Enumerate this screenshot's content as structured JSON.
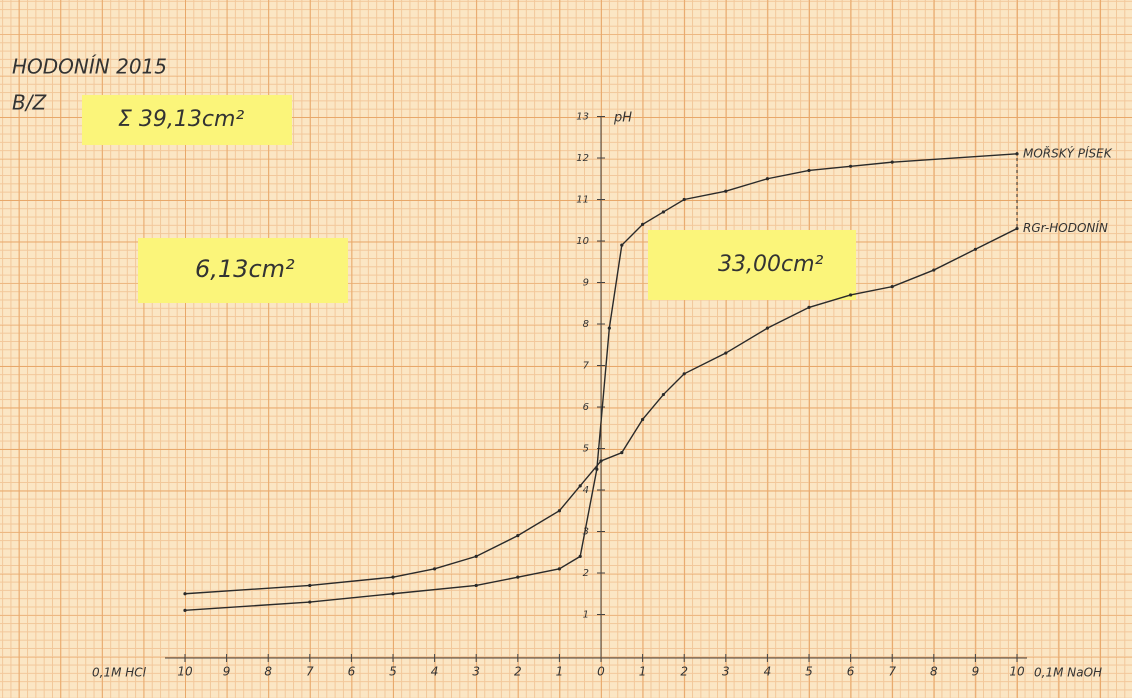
{
  "chart_data": {
    "type": "line",
    "title": "HODONÍN 2015",
    "subtitle": "B/Z",
    "annotations": [
      "Σ 39,13cm²",
      "6,13cm²",
      "33,00cm²"
    ],
    "y_label": "pH",
    "x_label_left": "0,1M HCl",
    "x_label_right": "0,1M NaOH",
    "xlim": [
      -10,
      10
    ],
    "ylim": [
      0,
      13
    ],
    "xticks": [
      {
        "value": -10,
        "label": "10"
      },
      {
        "value": -9,
        "label": "9"
      },
      {
        "value": -8,
        "label": "8"
      },
      {
        "value": -7,
        "label": "7"
      },
      {
        "value": -6,
        "label": "6"
      },
      {
        "value": -5,
        "label": "5"
      },
      {
        "value": -4,
        "label": "4"
      },
      {
        "value": -3,
        "label": "3"
      },
      {
        "value": -2,
        "label": "2"
      },
      {
        "value": -1,
        "label": "1"
      },
      0,
      1,
      2,
      3,
      4,
      5,
      6,
      7,
      8,
      9,
      10
    ],
    "yticks": [
      1,
      2,
      3,
      4,
      5,
      6,
      7,
      8,
      9,
      10,
      11,
      12,
      13
    ],
    "series": [
      {
        "name": "MOŘSKÝ PÍSEK",
        "color": "#2a2a2a",
        "x": [
          -10,
          -7,
          -5,
          -3,
          -2,
          -1,
          -0.5,
          -0.1,
          0.2,
          0.5,
          1,
          1.5,
          2,
          3,
          4,
          5,
          6,
          7,
          10
        ],
        "values": [
          1.1,
          1.3,
          1.5,
          1.7,
          1.9,
          2.1,
          2.4,
          4.5,
          7.9,
          9.9,
          10.4,
          10.7,
          11,
          11.2,
          11.5,
          11.7,
          11.8,
          11.9,
          12.1
        ]
      },
      {
        "name": "RGr-HODONÍN",
        "color": "#2a2a2a",
        "x": [
          -10,
          -7,
          -5,
          -4,
          -3,
          -2,
          -1,
          -0.5,
          0,
          0.5,
          1,
          1.5,
          2,
          3,
          4,
          5,
          6,
          7,
          8,
          9,
          10
        ],
        "values": [
          1.5,
          1.7,
          1.9,
          2.1,
          2.4,
          2.9,
          3.5,
          4.1,
          4.7,
          4.9,
          5.7,
          6.3,
          6.8,
          7.3,
          7.9,
          8.4,
          8.7,
          8.9,
          9.3,
          9.8,
          10.3
        ]
      }
    ]
  }
}
